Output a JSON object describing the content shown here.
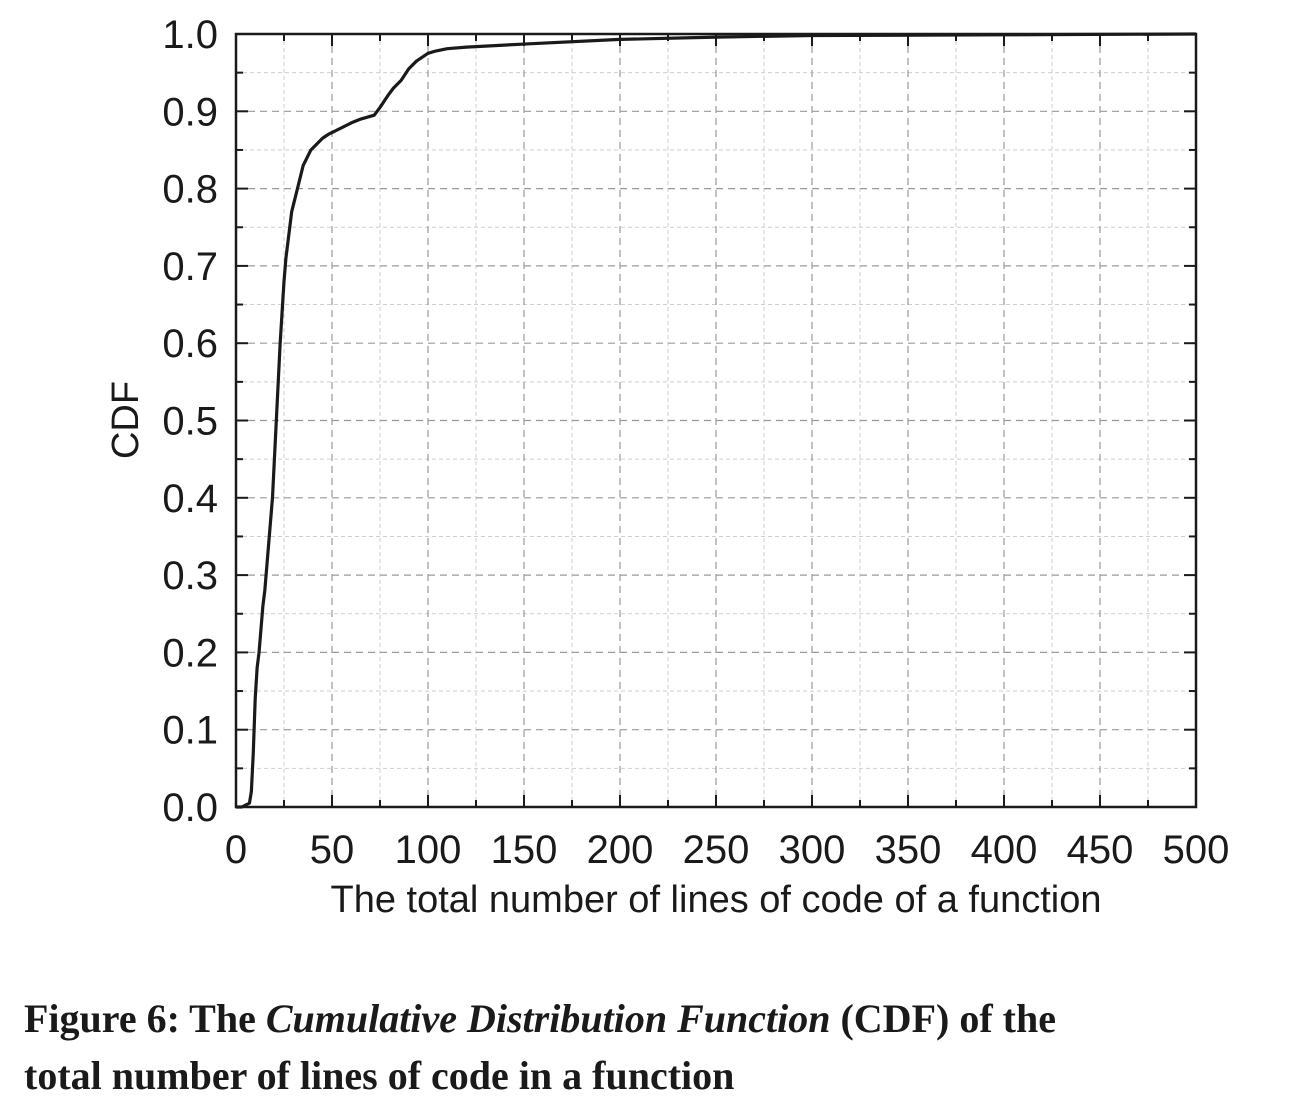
{
  "caption": {
    "prefix": "Figure 6: The ",
    "emphasis": "Cumulative Distribution Function",
    "suffix_line1": " (CDF) of the",
    "line2": "total number of lines of code in a function"
  },
  "chart_data": {
    "type": "line",
    "xlabel": "The total number of lines of code of a function",
    "ylabel": "CDF",
    "xlim": [
      0,
      500
    ],
    "ylim": [
      0,
      1.0
    ],
    "x_ticks": [
      "0",
      "50",
      "100",
      "150",
      "200",
      "250",
      "300",
      "350",
      "400",
      "450",
      "500"
    ],
    "y_ticks": [
      "0.0",
      "0.1",
      "0.2",
      "0.3",
      "0.4",
      "0.5",
      "0.6",
      "0.7",
      "0.8",
      "0.9",
      "1.0"
    ],
    "grid": true,
    "line_color": "#1a1a1a",
    "series": [
      {
        "x": [
          0,
          3,
          7,
          8,
          9,
          10,
          11,
          12,
          13,
          14,
          15,
          16,
          17,
          18,
          19,
          20,
          21,
          22,
          23,
          24,
          25,
          26,
          27,
          28,
          29,
          30,
          31,
          32,
          33,
          34,
          35,
          37,
          39,
          41,
          43,
          45,
          48,
          52,
          56,
          60,
          65,
          72,
          75,
          79,
          82,
          86,
          90,
          94,
          97,
          100,
          104,
          110,
          120,
          150,
          200,
          250,
          300,
          400,
          500
        ],
        "y": [
          0,
          0,
          0.005,
          0.02,
          0.07,
          0.14,
          0.18,
          0.2,
          0.23,
          0.26,
          0.28,
          0.31,
          0.34,
          0.37,
          0.4,
          0.45,
          0.5,
          0.55,
          0.6,
          0.64,
          0.68,
          0.71,
          0.73,
          0.75,
          0.77,
          0.78,
          0.79,
          0.8,
          0.81,
          0.82,
          0.83,
          0.84,
          0.85,
          0.855,
          0.86,
          0.865,
          0.87,
          0.875,
          0.88,
          0.885,
          0.89,
          0.895,
          0.905,
          0.92,
          0.93,
          0.94,
          0.955,
          0.965,
          0.97,
          0.975,
          0.978,
          0.981,
          0.983,
          0.987,
          0.993,
          0.996,
          0.998,
          0.999,
          1.0
        ]
      }
    ]
  }
}
